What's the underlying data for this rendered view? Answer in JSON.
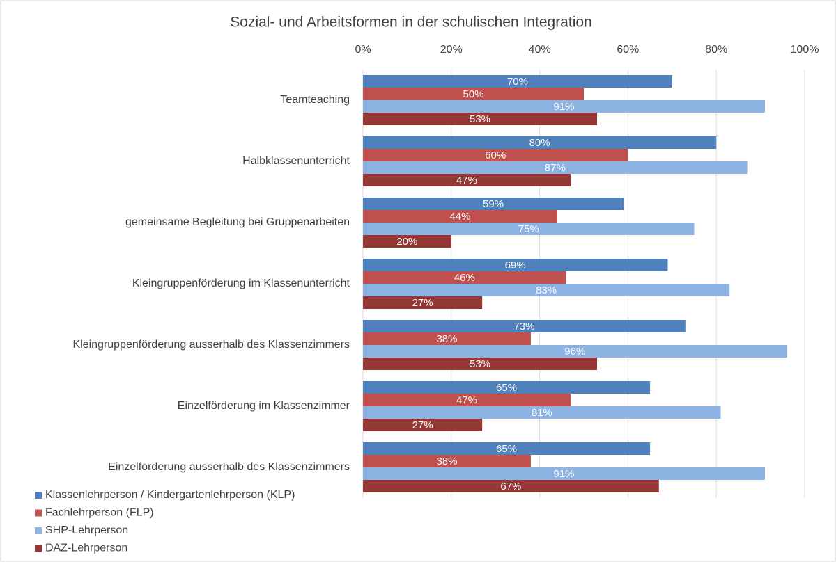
{
  "chart_data": {
    "type": "bar",
    "orientation": "horizontal",
    "title": "Sozial- und Arbeitsformen in der schulischen Integration",
    "categories": [
      "Teamteaching",
      "Halbklassenunterricht",
      "gemeinsame Begleitung bei Gruppenarbeiten",
      "Kleingruppenförderung im Klassenunterricht",
      "Kleingruppenförderung ausserhalb des Klassenzimmers",
      "Einzelförderung im Klassenzimmer",
      "Einzelförderung ausserhalb des Klassenzimmers"
    ],
    "series": [
      {
        "name": "Klassenlehrperson / Kindergartenlehrperson (KLP)",
        "color": "#4f81bd",
        "values": [
          70,
          80,
          59,
          69,
          73,
          65,
          65
        ],
        "value_labels": [
          "70%",
          "80%",
          "59%",
          "69%",
          "73%",
          "65%",
          "65%"
        ]
      },
      {
        "name": "Fachlehrperson (FLP)",
        "color": "#c0504d",
        "values": [
          50,
          60,
          44,
          46,
          38,
          47,
          38
        ],
        "value_labels": [
          "50%",
          "60%",
          "44%",
          "46%",
          "38%",
          "47%",
          "38%"
        ]
      },
      {
        "name": "SHP-Lehrperson",
        "color": "#8db3e2",
        "values": [
          91,
          87,
          75,
          83,
          96,
          81,
          91
        ],
        "value_labels": [
          "91%",
          "87%",
          "75%",
          "83%",
          "96%",
          "81%",
          "91%"
        ]
      },
      {
        "name": "DAZ-Lehrperson",
        "color": "#953735",
        "values": [
          53,
          47,
          20,
          27,
          53,
          27,
          67
        ],
        "value_labels": [
          "53%",
          "47%",
          "20%",
          "27%",
          "53%",
          "27%",
          "67%"
        ]
      }
    ],
    "xlim": [
      0,
      100
    ],
    "xticks": [
      {
        "value": 0,
        "label": "0%"
      },
      {
        "value": 20,
        "label": "20%"
      },
      {
        "value": 40,
        "label": "40%"
      },
      {
        "value": 60,
        "label": "60%"
      },
      {
        "value": 80,
        "label": "80%"
      },
      {
        "value": 100,
        "label": "100%"
      }
    ],
    "grid": true,
    "legend": "bottom-left"
  }
}
